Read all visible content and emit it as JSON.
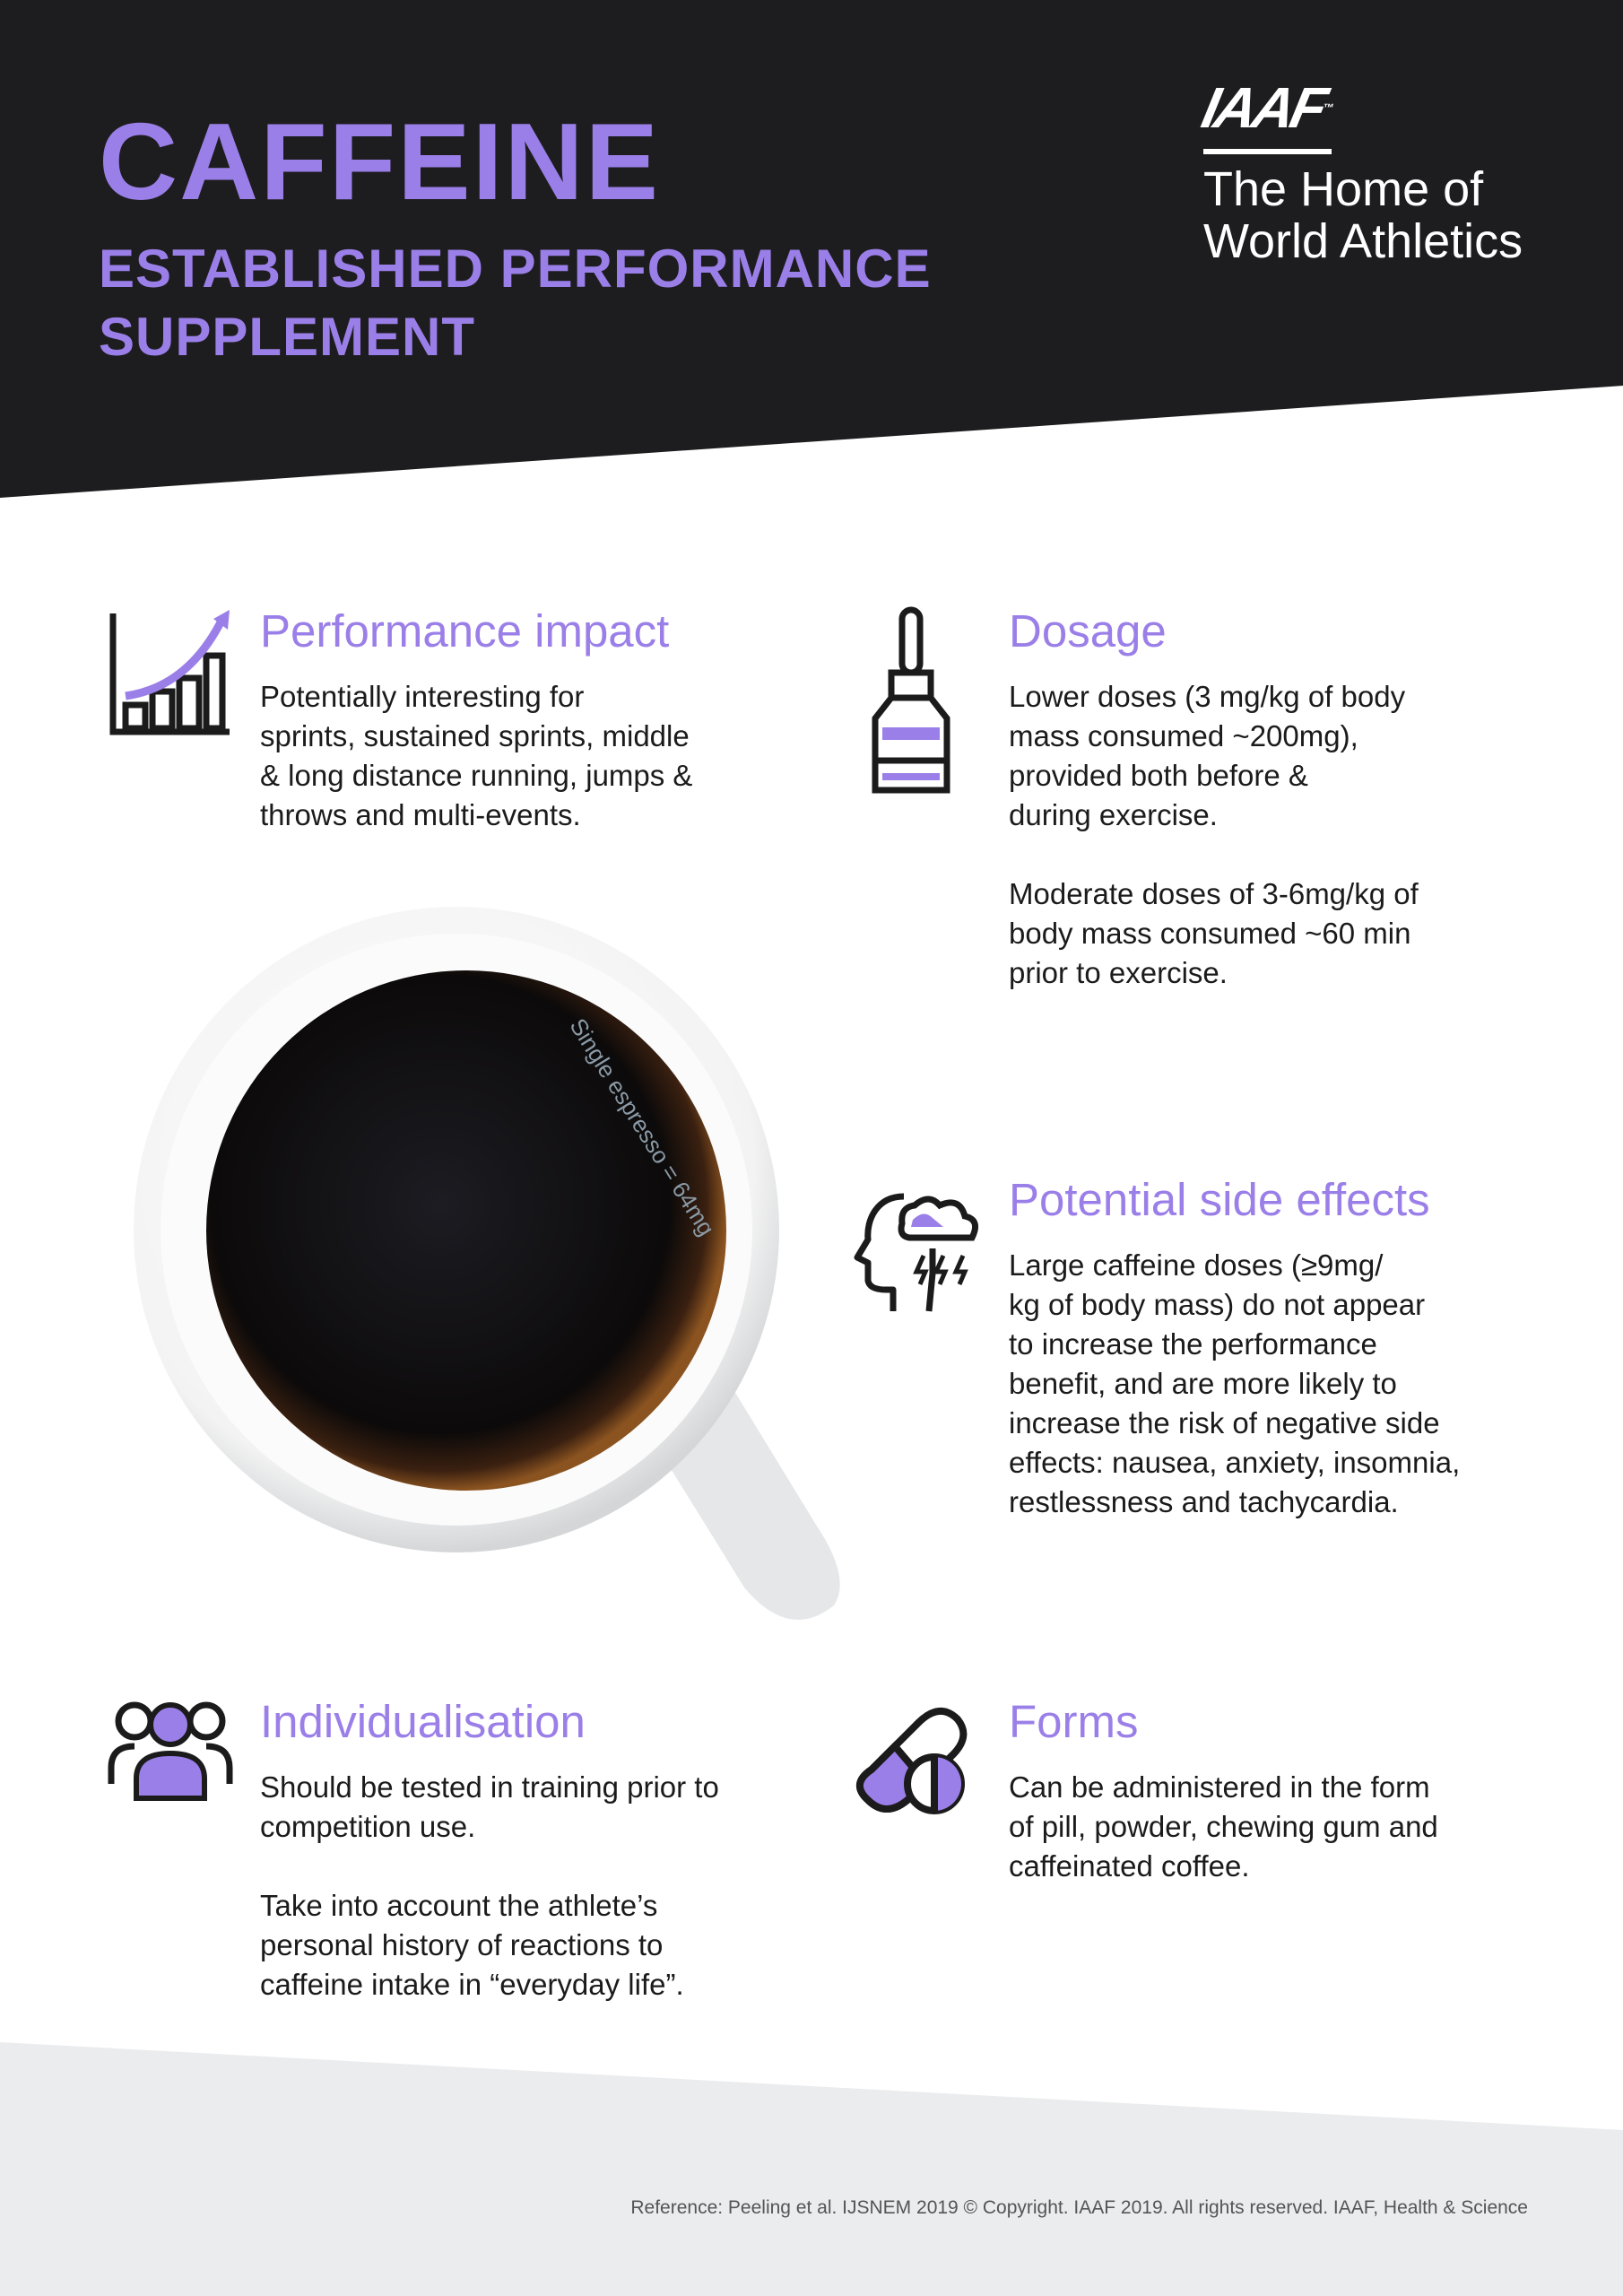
{
  "colors": {
    "accent": "#9b7fe8",
    "header_bg": "#1d1d1f",
    "footer_bg": "#eaecee",
    "text": "#1b1b1b"
  },
  "header": {
    "title": "CAFFEINE",
    "subtitle_lines": [
      "ESTABLISHED PERFORMANCE",
      "SUPPLEMENT"
    ],
    "logo": {
      "mark": "IAAF",
      "tm": "™",
      "tagline_lines": [
        "The Home of",
        "World Athletics"
      ]
    }
  },
  "image": {
    "caption": "Single espresso = 64mg"
  },
  "sections": {
    "performance": {
      "icon": "rising-bar-chart-icon",
      "heading": "Performance impact",
      "paragraphs": [
        [
          "Potentially interesting for",
          "sprints, sustained sprints, middle",
          "& long distance running, jumps &",
          "throws and multi-events."
        ]
      ]
    },
    "dosage": {
      "icon": "dropper-bottle-icon",
      "heading": "Dosage",
      "paragraphs": [
        [
          "Lower doses (3 mg/kg of body",
          "mass consumed ~200mg),",
          "provided both before &",
          "during exercise."
        ],
        [
          "Moderate doses of 3-6mg/kg of",
          "body mass consumed ~60 min",
          "prior to exercise."
        ]
      ]
    },
    "side_effects": {
      "icon": "head-storm-cloud-icon",
      "heading": "Potential side effects",
      "paragraphs": [
        [
          "Large caffeine doses (≥9mg/",
          "kg of body mass) do not appear",
          "to increase the performance",
          "benefit, and are more likely to",
          "increase the risk of negative side",
          "effects: nausea, anxiety, insomnia,",
          "restlessness and tachycardia."
        ]
      ]
    },
    "individualisation": {
      "icon": "people-group-icon",
      "heading": "Individualisation",
      "paragraphs": [
        [
          "Should be tested in training prior to",
          "competition use."
        ],
        [
          "Take into account the athlete’s",
          "personal history of reactions to",
          "caffeine intake in “everyday life”."
        ]
      ]
    },
    "forms": {
      "icon": "pill-capsule-icon",
      "heading": "Forms",
      "paragraphs": [
        [
          "Can be administered in the form",
          "of pill, powder, chewing gum and",
          "caffeinated coffee."
        ]
      ]
    }
  },
  "footer": {
    "reference": "Reference: Peeling et al. IJSNEM 2019 © Copyright. IAAF 2019. All rights reserved. IAAF, Health  & Science"
  }
}
